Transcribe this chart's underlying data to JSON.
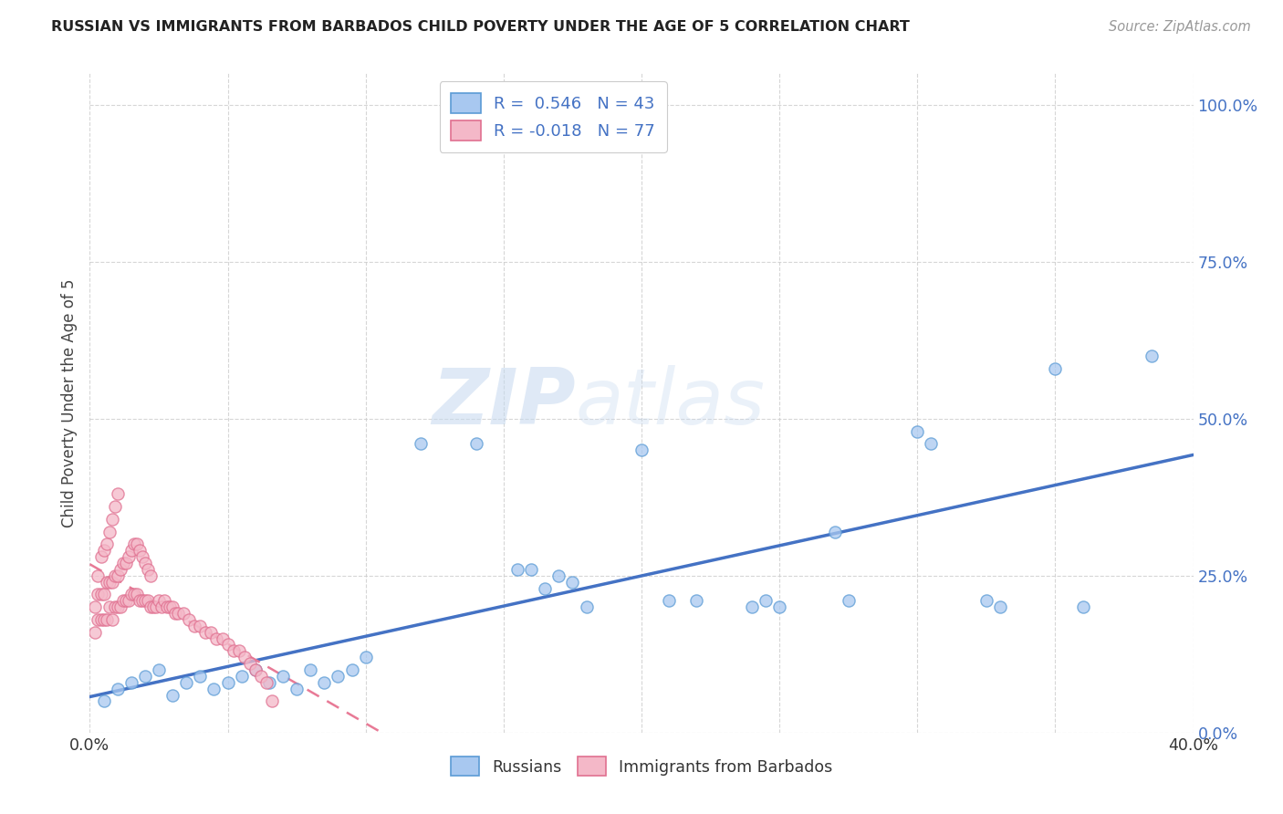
{
  "title": "RUSSIAN VS IMMIGRANTS FROM BARBADOS CHILD POVERTY UNDER THE AGE OF 5 CORRELATION CHART",
  "source": "Source: ZipAtlas.com",
  "ylabel": "Child Poverty Under the Age of 5",
  "xlim": [
    0.0,
    0.4
  ],
  "ylim": [
    0.0,
    1.05
  ],
  "ytick_values": [
    0.0,
    0.25,
    0.5,
    0.75,
    1.0
  ],
  "ytick_labels": [
    "0.0%",
    "25.0%",
    "50.0%",
    "75.0%",
    "100.0%"
  ],
  "xtick_values": [
    0.0,
    0.05,
    0.1,
    0.15,
    0.2,
    0.25,
    0.3,
    0.35,
    0.4
  ],
  "xtick_labels": [
    "0.0%",
    "",
    "",
    "",
    "",
    "",
    "",
    "",
    "40.0%"
  ],
  "russian_color": "#a8c8f0",
  "russian_edge_color": "#5b9bd5",
  "barbados_color": "#f4b8c8",
  "barbados_edge_color": "#e07090",
  "russian_R": 0.546,
  "russian_N": 43,
  "barbados_R": -0.018,
  "barbados_N": 77,
  "legend_label_russian": "Russians",
  "legend_label_barbados": "Immigrants from Barbados",
  "russian_line_color": "#4472c4",
  "barbados_line_color": "#e87a96",
  "watermark_zip": "ZIP",
  "watermark_atlas": "atlas",
  "russian_scatter_x": [
    0.005,
    0.01,
    0.015,
    0.02,
    0.025,
    0.03,
    0.035,
    0.04,
    0.045,
    0.05,
    0.055,
    0.06,
    0.065,
    0.07,
    0.075,
    0.08,
    0.085,
    0.09,
    0.095,
    0.1,
    0.12,
    0.14,
    0.155,
    0.16,
    0.165,
    0.17,
    0.175,
    0.18,
    0.2,
    0.21,
    0.22,
    0.24,
    0.245,
    0.25,
    0.27,
    0.275,
    0.3,
    0.305,
    0.325,
    0.33,
    0.35,
    0.36,
    0.385
  ],
  "russian_scatter_y": [
    0.05,
    0.07,
    0.08,
    0.09,
    0.1,
    0.06,
    0.08,
    0.09,
    0.07,
    0.08,
    0.09,
    0.1,
    0.08,
    0.09,
    0.07,
    0.1,
    0.08,
    0.09,
    0.1,
    0.12,
    0.46,
    0.46,
    0.26,
    0.26,
    0.23,
    0.25,
    0.24,
    0.2,
    0.45,
    0.21,
    0.21,
    0.2,
    0.21,
    0.2,
    0.32,
    0.21,
    0.48,
    0.46,
    0.21,
    0.2,
    0.58,
    0.2,
    0.6
  ],
  "barbados_scatter_x": [
    0.002,
    0.002,
    0.003,
    0.003,
    0.003,
    0.004,
    0.004,
    0.004,
    0.005,
    0.005,
    0.005,
    0.006,
    0.006,
    0.006,
    0.007,
    0.007,
    0.007,
    0.008,
    0.008,
    0.008,
    0.009,
    0.009,
    0.009,
    0.01,
    0.01,
    0.01,
    0.011,
    0.011,
    0.012,
    0.012,
    0.013,
    0.013,
    0.014,
    0.014,
    0.015,
    0.015,
    0.016,
    0.016,
    0.017,
    0.017,
    0.018,
    0.018,
    0.019,
    0.019,
    0.02,
    0.02,
    0.021,
    0.021,
    0.022,
    0.022,
    0.023,
    0.024,
    0.025,
    0.026,
    0.027,
    0.028,
    0.029,
    0.03,
    0.031,
    0.032,
    0.034,
    0.036,
    0.038,
    0.04,
    0.042,
    0.044,
    0.046,
    0.048,
    0.05,
    0.052,
    0.054,
    0.056,
    0.058,
    0.06,
    0.062,
    0.064,
    0.066
  ],
  "barbados_scatter_y": [
    0.16,
    0.2,
    0.18,
    0.22,
    0.25,
    0.18,
    0.22,
    0.28,
    0.18,
    0.22,
    0.29,
    0.18,
    0.24,
    0.3,
    0.2,
    0.24,
    0.32,
    0.18,
    0.24,
    0.34,
    0.2,
    0.25,
    0.36,
    0.2,
    0.25,
    0.38,
    0.2,
    0.26,
    0.21,
    0.27,
    0.21,
    0.27,
    0.21,
    0.28,
    0.22,
    0.29,
    0.22,
    0.3,
    0.22,
    0.3,
    0.21,
    0.29,
    0.21,
    0.28,
    0.21,
    0.27,
    0.21,
    0.26,
    0.2,
    0.25,
    0.2,
    0.2,
    0.21,
    0.2,
    0.21,
    0.2,
    0.2,
    0.2,
    0.19,
    0.19,
    0.19,
    0.18,
    0.17,
    0.17,
    0.16,
    0.16,
    0.15,
    0.15,
    0.14,
    0.13,
    0.13,
    0.12,
    0.11,
    0.1,
    0.09,
    0.08,
    0.05
  ]
}
